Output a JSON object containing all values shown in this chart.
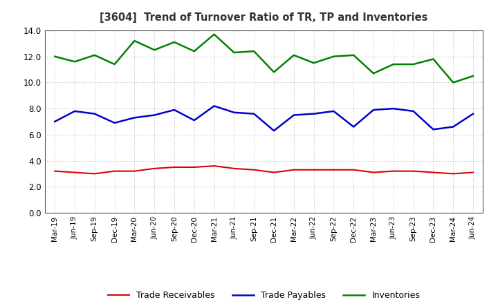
{
  "title": "[3604]  Trend of Turnover Ratio of TR, TP and Inventories",
  "labels": [
    "Mar-19",
    "Jun-19",
    "Sep-19",
    "Dec-19",
    "Mar-20",
    "Jun-20",
    "Sep-20",
    "Dec-20",
    "Mar-21",
    "Jun-21",
    "Sep-21",
    "Dec-21",
    "Mar-22",
    "Jun-22",
    "Sep-22",
    "Dec-22",
    "Mar-23",
    "Jun-23",
    "Sep-23",
    "Dec-23",
    "Mar-24",
    "Jun-24"
  ],
  "trade_receivables": [
    3.2,
    3.1,
    3.0,
    3.2,
    3.2,
    3.4,
    3.5,
    3.5,
    3.6,
    3.4,
    3.3,
    3.1,
    3.3,
    3.3,
    3.3,
    3.3,
    3.1,
    3.2,
    3.2,
    3.1,
    3.0,
    3.1
  ],
  "trade_payables": [
    7.0,
    7.8,
    7.6,
    6.9,
    7.3,
    7.5,
    7.9,
    7.1,
    8.2,
    7.7,
    7.6,
    6.3,
    7.5,
    7.6,
    7.8,
    6.6,
    7.9,
    8.0,
    7.8,
    6.4,
    6.6,
    7.6
  ],
  "inventories": [
    12.0,
    11.6,
    12.1,
    11.4,
    13.2,
    12.5,
    13.1,
    12.4,
    13.7,
    12.3,
    12.4,
    10.8,
    12.1,
    11.5,
    12.0,
    12.1,
    10.7,
    11.4,
    11.4,
    11.8,
    10.0,
    10.5
  ],
  "tr_color": "#dd0000",
  "tp_color": "#0000cc",
  "inv_color": "#008000",
  "ylim": [
    0.0,
    14.0
  ],
  "yticks": [
    0.0,
    2.0,
    4.0,
    6.0,
    8.0,
    10.0,
    12.0,
    14.0
  ],
  "legend_labels": [
    "Trade Receivables",
    "Trade Payables",
    "Inventories"
  ],
  "bg_color": "#ffffff",
  "plot_bg_color": "#ffffff",
  "grid_color": "#aaaaaa",
  "title_color": "#333333"
}
